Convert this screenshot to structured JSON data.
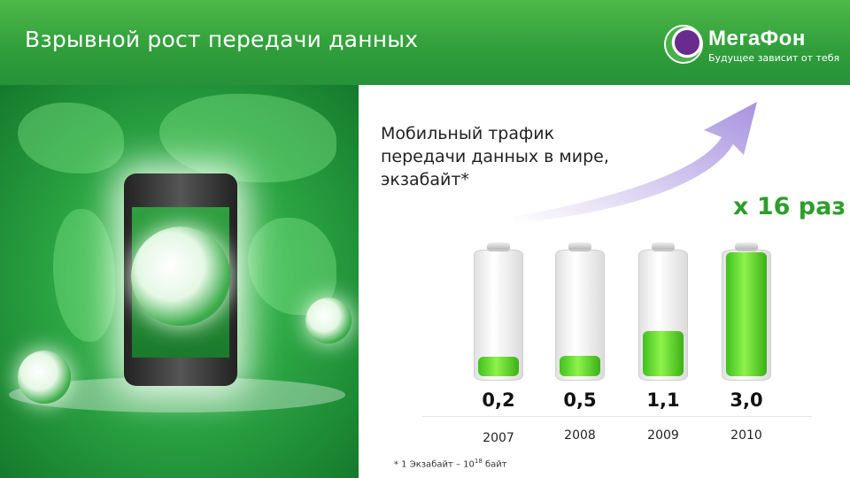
{
  "header": {
    "title": "Взрывной рост передачи данных"
  },
  "logo": {
    "name": "МегаФон",
    "slogan": "Будущее зависит от тебя"
  },
  "colors": {
    "header_green": "#2f9e3a",
    "accent_green": "#2d9e2e",
    "battery_fill": "#5fdc2c",
    "arrow": "#b9a8e8"
  },
  "chart_data": {
    "type": "bar",
    "title": "Мобильный трафик\nпередачи данных в мире,\nэкзабайт*",
    "categories": [
      "2007",
      "2008",
      "2009",
      "2010"
    ],
    "values": [
      0.2,
      0.5,
      1.1,
      3.0
    ],
    "value_labels": [
      "0,2",
      "0,5",
      "1,1",
      "3,0"
    ],
    "annotation": "х 16 раз",
    "ylim": [
      0,
      3.0
    ],
    "grid": false,
    "mark_style": "battery"
  },
  "footnote": {
    "prefix": "* 1 Экзабайт – 10",
    "exp": "18",
    "suffix": " байт"
  }
}
